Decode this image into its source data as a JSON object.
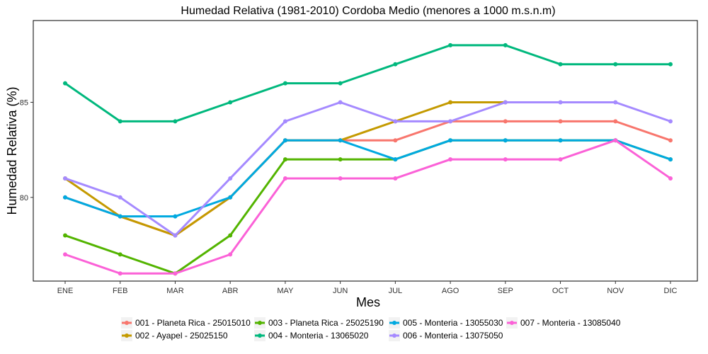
{
  "chart_data": {
    "type": "line",
    "title": "Humedad Relativa (1981-2010) Cordoba Medio (menores a 1000 m.s.n.m)",
    "xlabel": "Mes",
    "ylabel": "Humedad Relativa (%)",
    "categories": [
      "ENE",
      "FEB",
      "MAR",
      "ABR",
      "MAY",
      "JUN",
      "JUL",
      "AGO",
      "SEP",
      "OCT",
      "NOV",
      "DIC"
    ],
    "yticks": [
      80,
      85
    ],
    "ylim": [
      75.6,
      89.3
    ],
    "grid": false,
    "legend_position": "bottom",
    "series": [
      {
        "name": "001 - Planeta Rica - 25015010",
        "color": "#F8766D",
        "values": [
          80,
          79,
          78,
          80,
          83,
          83,
          83,
          84,
          84,
          84,
          84,
          83
        ]
      },
      {
        "name": "002 - Ayapel - 25025150",
        "color": "#C49A00",
        "values": [
          81,
          79,
          78,
          80,
          83,
          83,
          84,
          85,
          85,
          null,
          null,
          null
        ]
      },
      {
        "name": "003 - Planeta Rica - 25025190",
        "color": "#53B400",
        "values": [
          78,
          77,
          76,
          78,
          82,
          82,
          82,
          83,
          83,
          83,
          83,
          82
        ]
      },
      {
        "name": "004 - Monteria - 13065020",
        "color": "#00B87D",
        "values": [
          86,
          84,
          84,
          85,
          86,
          86,
          87,
          88,
          88,
          87,
          87,
          87
        ]
      },
      {
        "name": "005 - Monteria - 13055030",
        "color": "#00A9E0",
        "values": [
          80,
          79,
          79,
          80,
          83,
          83,
          82,
          83,
          83,
          83,
          83,
          82
        ]
      },
      {
        "name": "006 - Monteria - 13075050",
        "color": "#A58AFF",
        "values": [
          81,
          80,
          78,
          81,
          84,
          85,
          84,
          84,
          85,
          85,
          85,
          84
        ]
      },
      {
        "name": "007 - Monteria - 13085040",
        "color": "#FB61D7",
        "values": [
          77,
          76,
          76,
          77,
          81,
          81,
          81,
          82,
          82,
          82,
          83,
          81
        ]
      }
    ]
  }
}
